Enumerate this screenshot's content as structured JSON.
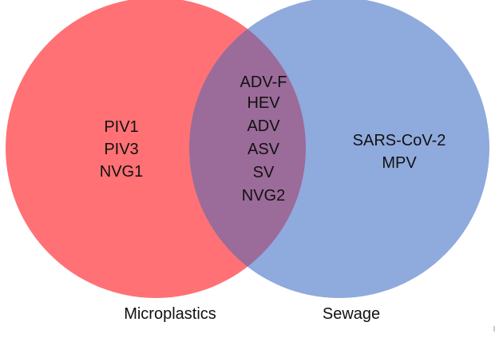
{
  "sets": [
    {
      "name": "Microplastics",
      "color": "#ff7174"
    },
    {
      "name": "Sewage",
      "color": "#8faadc"
    }
  ],
  "regions": {
    "microplastics_only": [
      "PIV1",
      "PIV3",
      "NVG1"
    ],
    "intersection": [
      "ADV-F",
      "HEV",
      "ADV",
      "ASV",
      "SV",
      "NVG2"
    ],
    "sewage_only": [
      "SARS-CoV-2",
      "MPV"
    ]
  },
  "overlap_color": "#9b6b99"
}
